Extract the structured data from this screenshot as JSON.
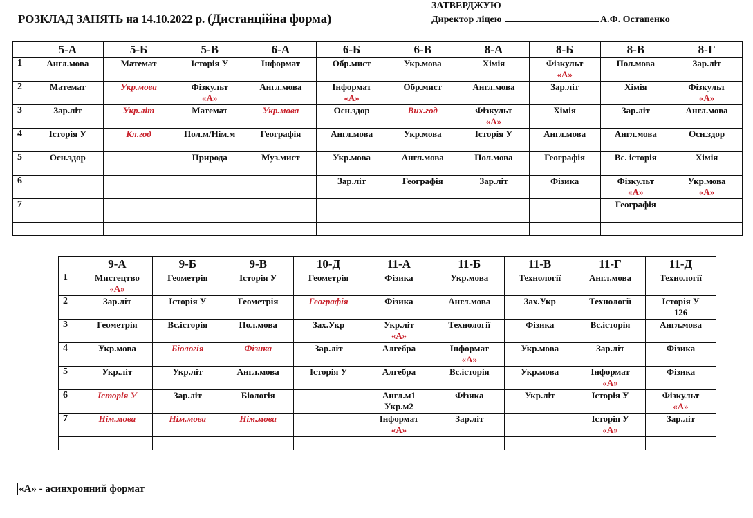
{
  "header": {
    "title_prefix": "РОЗКЛАД  ЗАНЯТЬ на 14.10.2022 р.",
    "title_form": "(Дистанційна  форма)",
    "approve": "ЗАТВЕРДЖУЮ",
    "director_label": "Директор ліцею",
    "director_name": "А.Ф. Остапенко"
  },
  "colors": {
    "accent_red": "#c8202a",
    "text": "#111111"
  },
  "async_mark": "«А»",
  "tables": [
    {
      "classes": [
        "5-А",
        "5-Б",
        "5-В",
        "6-А",
        "6-Б",
        "6-В",
        "8-А",
        "8-Б",
        "8-В",
        "8-Г"
      ],
      "rows": [
        {
          "n": "1",
          "cells": [
            {
              "t": "Англ.мова"
            },
            {
              "t": "Математ"
            },
            {
              "t": "Історія У"
            },
            {
              "t": "Інформат"
            },
            {
              "t": "Обр.мист"
            },
            {
              "t": "Укр.мова"
            },
            {
              "t": "Хімія"
            },
            {
              "t": "Фізкульт",
              "a": true
            },
            {
              "t": "Пол.мова"
            },
            {
              "t": "Зар.літ"
            }
          ]
        },
        {
          "n": "2",
          "cells": [
            {
              "t": "Математ"
            },
            {
              "t": "Укр.мова",
              "red": true
            },
            {
              "t": "Фізкульт",
              "a": true
            },
            {
              "t": "Англ.мова"
            },
            {
              "t": "Інформат",
              "a": true
            },
            {
              "t": "Обр.мист"
            },
            {
              "t": "Англ.мова"
            },
            {
              "t": "Зар.літ"
            },
            {
              "t": "Хімія"
            },
            {
              "t": "Фізкульт",
              "a": true
            }
          ]
        },
        {
          "n": "3",
          "cells": [
            {
              "t": "Зар.літ"
            },
            {
              "t": "Укр.літ",
              "red": true
            },
            {
              "t": "Математ"
            },
            {
              "t": "Укр.мова",
              "red": true
            },
            {
              "t": "Осн.здор"
            },
            {
              "t": "Вих.год",
              "red": true
            },
            {
              "t": "Фізкульт",
              "a": true
            },
            {
              "t": "Хімія"
            },
            {
              "t": "Зар.літ"
            },
            {
              "t": "Англ.мова"
            }
          ]
        },
        {
          "n": "4",
          "cells": [
            {
              "t": "Історія У"
            },
            {
              "t": "Кл.год",
              "red": true
            },
            {
              "t": "Пол.м/Нім.м"
            },
            {
              "t": "Географія"
            },
            {
              "t": "Англ.мова"
            },
            {
              "t": "Укр.мова"
            },
            {
              "t": "Історія У"
            },
            {
              "t": "Англ.мова"
            },
            {
              "t": "Англ.мова"
            },
            {
              "t": "Осн.здор"
            }
          ]
        },
        {
          "n": "5",
          "cells": [
            {
              "t": "Осн.здор"
            },
            {
              "t": ""
            },
            {
              "t": "Природа"
            },
            {
              "t": "Муз.мист"
            },
            {
              "t": "Укр.мова"
            },
            {
              "t": "Англ.мова"
            },
            {
              "t": "Пол.мова"
            },
            {
              "t": "Географія"
            },
            {
              "t": "Вс. історія"
            },
            {
              "t": "Хімія"
            }
          ]
        },
        {
          "n": "6",
          "cells": [
            {
              "t": ""
            },
            {
              "t": ""
            },
            {
              "t": ""
            },
            {
              "t": ""
            },
            {
              "t": "Зар.літ"
            },
            {
              "t": "Географія"
            },
            {
              "t": "Зар.літ"
            },
            {
              "t": "Фізика"
            },
            {
              "t": "Фізкульт",
              "a": true
            },
            {
              "t": "Укр.мова",
              "a": true
            }
          ]
        },
        {
          "n": "7",
          "cells": [
            {
              "t": ""
            },
            {
              "t": ""
            },
            {
              "t": ""
            },
            {
              "t": ""
            },
            {
              "t": ""
            },
            {
              "t": ""
            },
            {
              "t": ""
            },
            {
              "t": ""
            },
            {
              "t": "Географія"
            },
            {
              "t": ""
            }
          ]
        }
      ]
    },
    {
      "classes": [
        "9-А",
        "9-Б",
        "9-В",
        "10-Д",
        "11-А",
        "11-Б",
        "11-В",
        "11-Г",
        "11-Д"
      ],
      "rows": [
        {
          "n": "1",
          "cells": [
            {
              "t": "Мистецтво",
              "a": true
            },
            {
              "t": "Геометрія"
            },
            {
              "t": "Історія У"
            },
            {
              "t": "Геометрія"
            },
            {
              "t": "Фізика"
            },
            {
              "t": "Укр.мова"
            },
            {
              "t": "Технології"
            },
            {
              "t": "Англ.мова"
            },
            {
              "t": "Технології"
            }
          ]
        },
        {
          "n": "2",
          "cells": [
            {
              "t": "Зар.літ"
            },
            {
              "t": "Історія У"
            },
            {
              "t": "Геометрія"
            },
            {
              "t": "Географія",
              "red": true
            },
            {
              "t": "Фізика"
            },
            {
              "t": "Англ.мова"
            },
            {
              "t": "Зах.Укр"
            },
            {
              "t": "Технології"
            },
            {
              "t": "Історія У",
              "t2": "126"
            }
          ]
        },
        {
          "n": "3",
          "cells": [
            {
              "t": "Геометрія"
            },
            {
              "t": "Вс.історія"
            },
            {
              "t": "Пол.мова"
            },
            {
              "t": "Зах.Укр"
            },
            {
              "t": "Укр.літ",
              "a": true
            },
            {
              "t": "Технології"
            },
            {
              "t": "Фізика"
            },
            {
              "t": "Вс.історія"
            },
            {
              "t": "Англ.мова"
            }
          ]
        },
        {
          "n": "4",
          "cells": [
            {
              "t": "Укр.мова"
            },
            {
              "t": "Біологія",
              "red": true
            },
            {
              "t": "Фізика",
              "red": true
            },
            {
              "t": "Зар.літ"
            },
            {
              "t": "Алгебра"
            },
            {
              "t": "Інформат",
              "a": true
            },
            {
              "t": "Укр.мова"
            },
            {
              "t": "Зар.літ"
            },
            {
              "t": "Фізика"
            }
          ]
        },
        {
          "n": "5",
          "cells": [
            {
              "t": "Укр.літ"
            },
            {
              "t": "Укр.літ"
            },
            {
              "t": "Англ.мова"
            },
            {
              "t": "Історія У"
            },
            {
              "t": "Алгебра"
            },
            {
              "t": "Вс.історія"
            },
            {
              "t": "Укр.мова"
            },
            {
              "t": "Інформат",
              "a": true
            },
            {
              "t": "Фізика"
            }
          ]
        },
        {
          "n": "6",
          "cells": [
            {
              "t": "Історія У",
              "red": true
            },
            {
              "t": "Зар.літ"
            },
            {
              "t": "Біологія"
            },
            {
              "t": ""
            },
            {
              "t": "Англ.м1",
              "t2": "Укр.м2"
            },
            {
              "t": "Фізика"
            },
            {
              "t": "Укр.літ"
            },
            {
              "t": "Історія У"
            },
            {
              "t": "Фізкульт",
              "a": true
            }
          ]
        },
        {
          "n": "7",
          "cells": [
            {
              "t": "Нім.мова",
              "red": true
            },
            {
              "t": "Нім.мова",
              "red": true
            },
            {
              "t": "Нім.мова",
              "red": true
            },
            {
              "t": ""
            },
            {
              "t": "Інформат",
              "a": true
            },
            {
              "t": "Зар.літ"
            },
            {
              "t": ""
            },
            {
              "t": "Історія У",
              "a": true
            },
            {
              "t": "Зар.літ"
            }
          ]
        }
      ]
    }
  ],
  "footer": {
    "legend": "«А» - асинхронний формат"
  }
}
